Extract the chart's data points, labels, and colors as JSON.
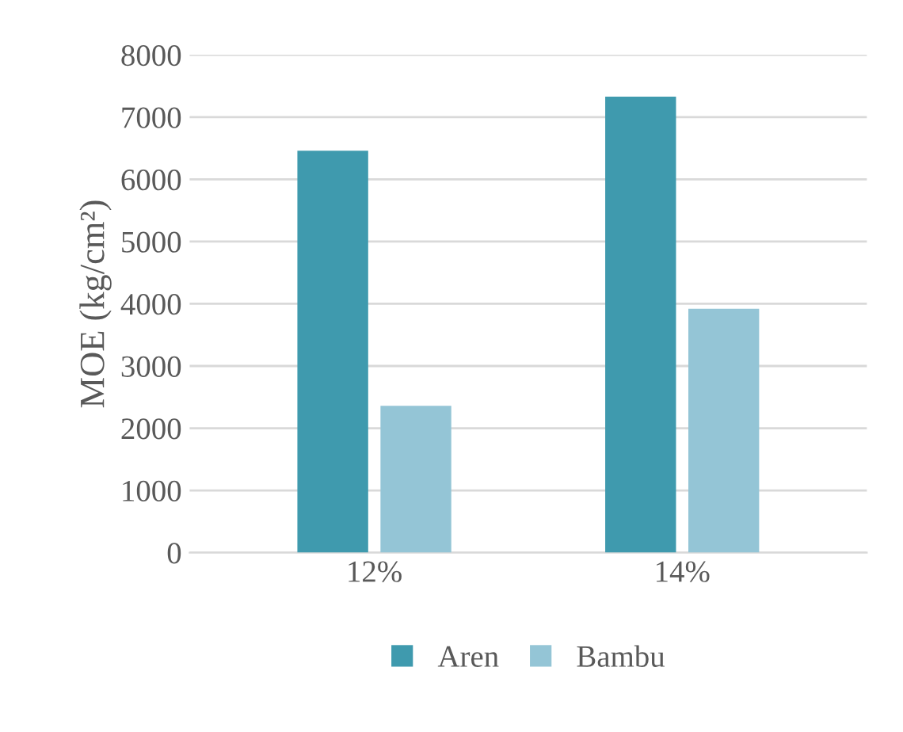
{
  "chart_data": {
    "type": "bar",
    "categories": [
      "12%",
      "14%"
    ],
    "ylabel": "MOE (kg/cm²)",
    "series": [
      {
        "name": "Aren",
        "color": "#3f9aae",
        "values": [
          6460,
          7330
        ]
      },
      {
        "name": "Bambu",
        "color": "#94c5d6",
        "values": [
          2360,
          3920
        ]
      }
    ],
    "ylim": [
      0,
      8000
    ],
    "yticks": [
      0,
      1000,
      2000,
      3000,
      4000,
      5000,
      6000,
      7000,
      8000
    ],
    "grid": "y",
    "legend": "bottom"
  }
}
